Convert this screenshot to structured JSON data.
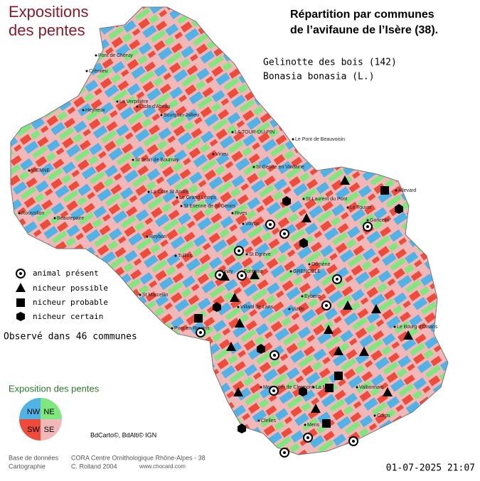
{
  "header": {
    "title_lines": [
      "Expositions",
      "des pentes"
    ],
    "subtitle_lines": [
      "Répartition par communes",
      "de l’avifaune de l’Isère (38)."
    ],
    "species": "Gelinotte des bois  (142)",
    "latin": "Bonasia bonasia (L.)"
  },
  "legend": {
    "items": [
      "animal présent",
      "nicheur possible",
      "nicheur probable",
      "nicheur certain"
    ],
    "observed": "Observé dans 46 communes"
  },
  "exposition": {
    "title": "Exposition des pentes",
    "quadrants": [
      "NW",
      "NE",
      "SW",
      "SE"
    ]
  },
  "source": "BdCarto©, BdAlti© IGN",
  "credits": {
    "labels": [
      "Base de données",
      "Cartographie"
    ],
    "values": [
      "CORA Centre Ornithologique Rhône-Alpes - 38",
      "C. Rolland 2004"
    ],
    "site": "www.chocard.com"
  },
  "date": "01-07-2025 21:07",
  "towns": [
    "Pont de Chéruy",
    "Crémieu",
    "La Verpillière",
    "L'Isle d'Abeau",
    "Heyrieux",
    "Bourgoin-Jallieu",
    "LA TOUR-DU-PIN",
    "Le Pont de Beauvoisin",
    "VIENNE",
    "St Jean de Bournay",
    "Virieu",
    "St Geoire en Valdaine",
    "La Côte St André",
    "Le Grand Lemps",
    "Roussillon",
    "Beaurepaire",
    "Rives",
    "Voiron",
    "St Laurent du Pont",
    "Le Touvet",
    "Goncelin",
    "Allevard",
    "St Egrève",
    "GRENOBLE",
    "Domène",
    "Roybon",
    "Tullins",
    "St Etienne de St Geoirs",
    "Vinay",
    "Fontaine",
    "St Marcellin",
    "Eybens",
    "Vizille",
    "Villard de Lans",
    "Pont en Royans",
    "Le Bourg d'Oisans",
    "Monestier de Clermont",
    "La Mure",
    "Valbonnais",
    "Mens",
    "Clelles",
    "Corps"
  ]
}
